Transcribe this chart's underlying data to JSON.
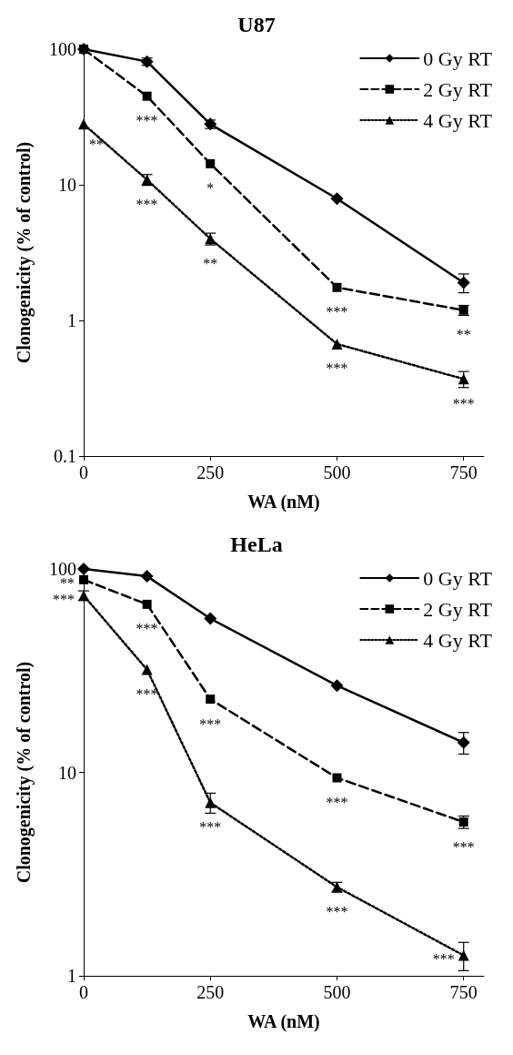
{
  "chart_data": [
    {
      "type": "line",
      "title": "U87",
      "xlabel": "WA (nM)",
      "ylabel": "Clonogenicity (% of control)",
      "x": [
        0,
        125,
        250,
        500,
        750
      ],
      "xlim": [
        0,
        790
      ],
      "xticks": [
        0,
        250,
        500,
        750
      ],
      "ylim": [
        0.1,
        100
      ],
      "yticks": [
        0.1,
        1,
        10,
        100
      ],
      "log": "y",
      "grid": false,
      "legend": "top right",
      "series": [
        {
          "name": "0 Gy RT",
          "color": "#000000",
          "marker": "diamond",
          "line_style": "solid",
          "values": [
            100,
            81,
            28,
            7.9,
            1.9
          ],
          "errors": [
            null,
            5,
            2,
            null,
            0.3
          ]
        },
        {
          "name": "2 Gy RT",
          "color": "#000000",
          "marker": "square",
          "line_style": "dashed",
          "values": [
            100,
            45,
            14.3,
            1.75,
            1.19
          ],
          "errors": [
            null,
            null,
            null,
            null,
            0.1
          ]
        },
        {
          "name": "4 Gy RT",
          "color": "#000000",
          "marker": "triangle",
          "line_style": "dotted",
          "values": [
            28,
            10.9,
            4.0,
            0.67,
            0.37
          ],
          "errors": [
            null,
            1,
            0.4,
            null,
            0.05
          ]
        }
      ],
      "annotations": [
        {
          "text": "**",
          "x": 0,
          "y": 28
        },
        {
          "text": "***",
          "x": 125,
          "y": 45
        },
        {
          "text": "***",
          "x": 125,
          "y": 10.9
        },
        {
          "text": "*",
          "x": 250,
          "y": 14.3
        },
        {
          "text": "**",
          "x": 250,
          "y": 4.0
        },
        {
          "text": "***",
          "x": 500,
          "y": 1.75
        },
        {
          "text": "***",
          "x": 500,
          "y": 0.67
        },
        {
          "text": "**",
          "x": 750,
          "y": 1.19
        },
        {
          "text": "***",
          "x": 750,
          "y": 0.37
        }
      ]
    },
    {
      "type": "line",
      "title": "HeLa",
      "xlabel": "WA (nM)",
      "ylabel": "Clonogenicity (% of control)",
      "x": [
        0,
        125,
        250,
        500,
        750
      ],
      "xlim": [
        0,
        790
      ],
      "xticks": [
        0,
        250,
        500,
        750
      ],
      "ylim": [
        1,
        100
      ],
      "yticks": [
        1,
        10,
        100
      ],
      "log": "y",
      "grid": false,
      "legend": "top right",
      "series": [
        {
          "name": "0 Gy RT",
          "color": "#000000",
          "marker": "diamond",
          "line_style": "solid",
          "values": [
            100,
            92,
            57,
            26.7,
            14.0
          ],
          "errors": [
            null,
            null,
            null,
            null,
            1.7
          ]
        },
        {
          "name": "2 Gy RT",
          "color": "#000000",
          "marker": "square",
          "line_style": "dashed",
          "values": [
            88.5,
            67,
            22.9,
            9.4,
            5.7
          ],
          "errors": [
            null,
            null,
            null,
            null,
            0.4
          ]
        },
        {
          "name": "4 Gy RT",
          "color": "#000000",
          "marker": "triangle",
          "line_style": "dotted",
          "values": [
            74,
            32,
            7.1,
            2.73,
            1.26
          ],
          "errors": [
            4,
            null,
            0.8,
            0.15,
            0.2
          ]
        }
      ],
      "annotations": [
        {
          "text": "**",
          "x": 0,
          "y": 88.5
        },
        {
          "text": "***",
          "x": 0,
          "y": 74
        },
        {
          "text": "***",
          "x": 125,
          "y": 67
        },
        {
          "text": "***",
          "x": 125,
          "y": 32
        },
        {
          "text": "***",
          "x": 250,
          "y": 22.9
        },
        {
          "text": "***",
          "x": 250,
          "y": 7.1
        },
        {
          "text": "***",
          "x": 500,
          "y": 9.4
        },
        {
          "text": "***",
          "x": 500,
          "y": 2.73
        },
        {
          "text": "***",
          "x": 750,
          "y": 5.7
        },
        {
          "text": "***",
          "x": 750,
          "y": 1.26
        }
      ]
    }
  ]
}
